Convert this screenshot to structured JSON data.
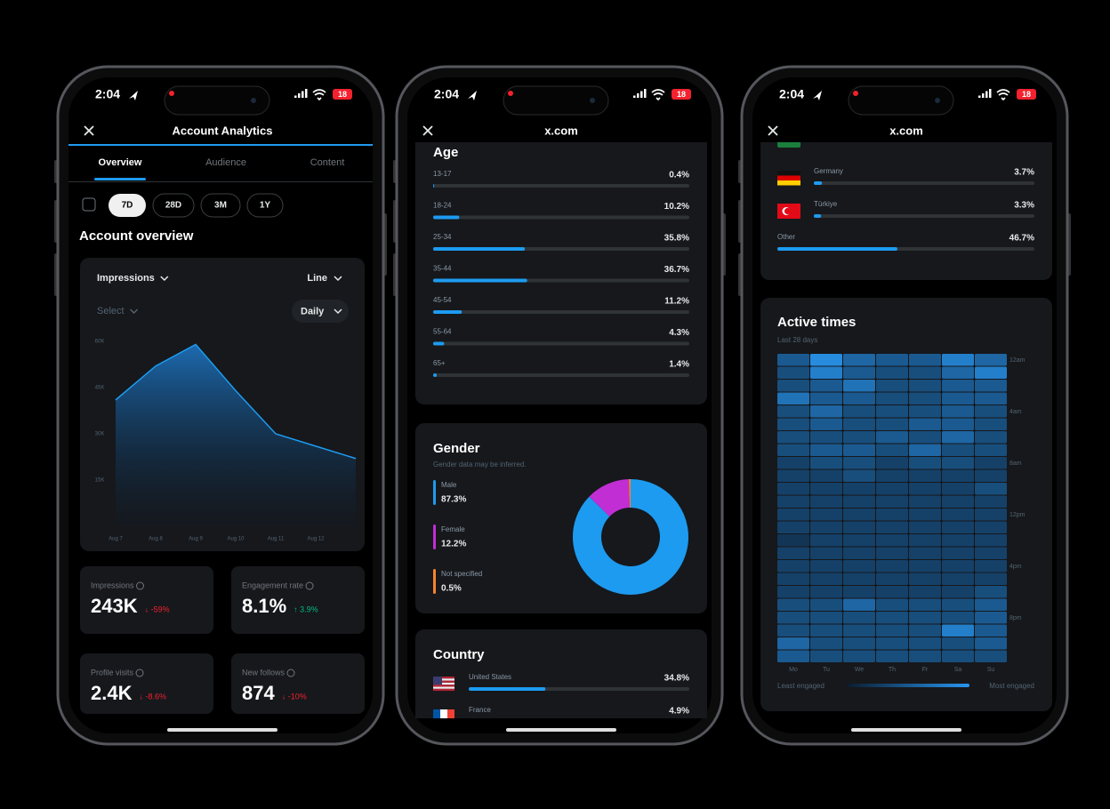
{
  "phones": [
    {
      "status": {
        "time": "2:04",
        "battery": "18"
      },
      "header": {
        "title": "Account Analytics"
      },
      "tabs": [
        "Overview",
        "Audience",
        "Content"
      ],
      "ranges": [
        "7D",
        "28D",
        "3M",
        "1Y"
      ],
      "section_title": "Account overview",
      "chart": {
        "type": "area",
        "metric": "Impressions",
        "chart_type": "Line",
        "select": "Select",
        "interval": "Daily",
        "categories": [
          "Aug 7",
          "Aug 8",
          "Aug 9",
          "Aug 10",
          "Aug 11",
          "Aug 12",
          null
        ],
        "values": [
          41000,
          52000,
          59000,
          44000,
          30000,
          26000,
          22000
        ],
        "ylim": [
          0,
          60000
        ],
        "yticks": [
          {
            "value": 15000,
            "label": "15K"
          },
          {
            "value": 30000,
            "label": "30K"
          },
          {
            "value": 45000,
            "label": "45K"
          },
          {
            "value": 60000,
            "label": "60K"
          }
        ],
        "color": "#1d9bf0"
      },
      "metrics": [
        {
          "label": "Impressions",
          "value": "243K",
          "change": "↓ -59%",
          "change_color": "#f4212e"
        },
        {
          "label": "Engagement rate",
          "value": "8.1%",
          "change": "↑ 3.9%",
          "change_color": "#00ba7c"
        },
        {
          "label": "Profile visits",
          "value": "2.4K",
          "change": "↓ -8.6%",
          "change_color": "#f4212e"
        },
        {
          "label": "New follows",
          "value": "874",
          "change": "↓ -10%",
          "change_color": "#f4212e"
        }
      ]
    },
    {
      "status": {
        "time": "2:04",
        "battery": "18"
      },
      "header": {
        "title": "x.com"
      },
      "age": {
        "title": "Age",
        "color": "#1d9bf0",
        "rows": [
          {
            "label": "13-17",
            "value": 0.4,
            "value_label": "0.4%"
          },
          {
            "label": "18-24",
            "value": 10.2,
            "value_label": "10.2%"
          },
          {
            "label": "25-34",
            "value": 35.8,
            "value_label": "35.8%"
          },
          {
            "label": "35-44",
            "value": 36.7,
            "value_label": "36.7%"
          },
          {
            "label": "45-54",
            "value": 11.2,
            "value_label": "11.2%"
          },
          {
            "label": "55-64",
            "value": 4.3,
            "value_label": "4.3%"
          },
          {
            "label": "65+",
            "value": 1.4,
            "value_label": "1.4%"
          }
        ]
      },
      "gender": {
        "title": "Gender",
        "subtitle": "Gender data may be inferred.",
        "rows": [
          {
            "label": "Male",
            "value": 87.3,
            "value_label": "87.3%",
            "color": "#1d9bf0"
          },
          {
            "label": "Female",
            "value": 12.2,
            "value_label": "12.2%",
            "color": "#c12ed4"
          },
          {
            "label": "Not specified",
            "value": 0.5,
            "value_label": "0.5%",
            "color": "#f7842a"
          }
        ]
      },
      "country": {
        "title": "Country",
        "color": "#1d9bf0",
        "rows": [
          {
            "label": "United States",
            "value": 34.8,
            "value_label": "34.8%"
          },
          {
            "label": "France",
            "value": 4.9,
            "value_label": "4.9%"
          }
        ]
      }
    },
    {
      "status": {
        "time": "2:04",
        "battery": "18"
      },
      "header": {
        "title": "x.com"
      },
      "country": {
        "color": "#1d9bf0",
        "rows": [
          {
            "label": "Germany",
            "value": 3.7,
            "value_label": "3.7%"
          },
          {
            "label": "Türkiye",
            "value": 3.3,
            "value_label": "3.3%"
          },
          {
            "label": "Other",
            "value": 46.7,
            "value_label": "46.7%"
          }
        ]
      },
      "active_times": {
        "title": "Active times",
        "subtitle": "Last 28 days",
        "days": [
          "Mo",
          "Tu",
          "We",
          "Th",
          "Fr",
          "Sa",
          "Su"
        ],
        "hour_labels": [
          "12am",
          "4am",
          "8am",
          "12pm",
          "4pm",
          "8pm"
        ],
        "range": [
          0,
          10
        ],
        "values": [
          [
            5,
            9,
            6,
            5,
            5,
            8,
            6
          ],
          [
            4,
            8,
            5,
            4,
            4,
            6,
            8
          ],
          [
            4,
            5,
            7,
            4,
            4,
            5,
            5
          ],
          [
            7,
            5,
            5,
            4,
            4,
            5,
            5
          ],
          [
            4,
            6,
            4,
            4,
            4,
            5,
            4
          ],
          [
            4,
            5,
            4,
            4,
            5,
            5,
            4
          ],
          [
            4,
            4,
            4,
            5,
            4,
            6,
            4
          ],
          [
            4,
            5,
            5,
            4,
            6,
            4,
            4
          ],
          [
            3,
            4,
            4,
            3,
            4,
            4,
            3
          ],
          [
            3,
            3,
            4,
            3,
            3,
            3,
            3
          ],
          [
            3,
            3,
            3,
            3,
            3,
            3,
            4
          ],
          [
            3,
            3,
            3,
            3,
            3,
            3,
            3
          ],
          [
            3,
            3,
            3,
            3,
            3,
            3,
            3
          ],
          [
            3,
            3,
            3,
            3,
            3,
            3,
            3
          ],
          [
            2,
            3,
            3,
            3,
            3,
            3,
            3
          ],
          [
            3,
            3,
            3,
            3,
            3,
            3,
            3
          ],
          [
            3,
            3,
            3,
            3,
            3,
            3,
            3
          ],
          [
            3,
            3,
            3,
            3,
            3,
            3,
            3
          ],
          [
            3,
            3,
            3,
            3,
            3,
            3,
            4
          ],
          [
            4,
            4,
            6,
            4,
            4,
            4,
            5
          ],
          [
            4,
            4,
            4,
            4,
            4,
            4,
            5
          ],
          [
            4,
            4,
            4,
            4,
            4,
            8,
            5
          ],
          [
            6,
            4,
            4,
            4,
            4,
            4,
            5
          ],
          [
            5,
            4,
            4,
            4,
            4,
            4,
            4
          ]
        ],
        "legend": {
          "low": "Least engaged",
          "high": "Most engaged"
        }
      }
    }
  ]
}
